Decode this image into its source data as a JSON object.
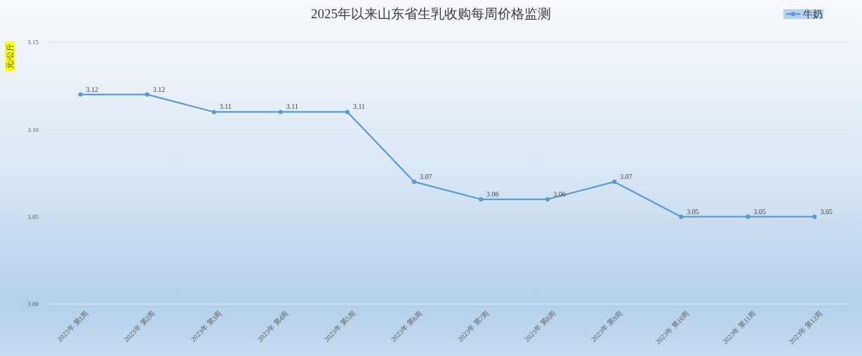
{
  "chart_data": {
    "type": "line",
    "title": "2025年以来山东省生乳收购每周价格监测",
    "ylabel": "元/公斤",
    "categories": [
      "2023年 第1周",
      "2023年 第2周",
      "2023年 第3周",
      "2023年 第4周",
      "2023年 第5周",
      "2023年 第6周",
      "2023年 第7周",
      "2023年 第8周",
      "2023年 第9周",
      "2023年 第10周",
      "2023年 第11周",
      "2023年 第12周"
    ],
    "series": [
      {
        "name": "牛奶",
        "color": "#5b9bd5",
        "values": [
          3.12,
          3.12,
          3.11,
          3.11,
          3.11,
          3.07,
          3.06,
          3.06,
          3.07,
          3.05,
          3.05,
          3.05
        ]
      }
    ],
    "ylim": [
      3.0,
      3.15
    ],
    "yticks": [
      {
        "value": 3.0,
        "label": "3.00"
      },
      3.05,
      {
        "value": 3.1,
        "label": "3.10"
      },
      3.15
    ],
    "grid": "y",
    "legend": "top right",
    "marker": "circle",
    "line_style": "solid",
    "data_labels": true
  }
}
